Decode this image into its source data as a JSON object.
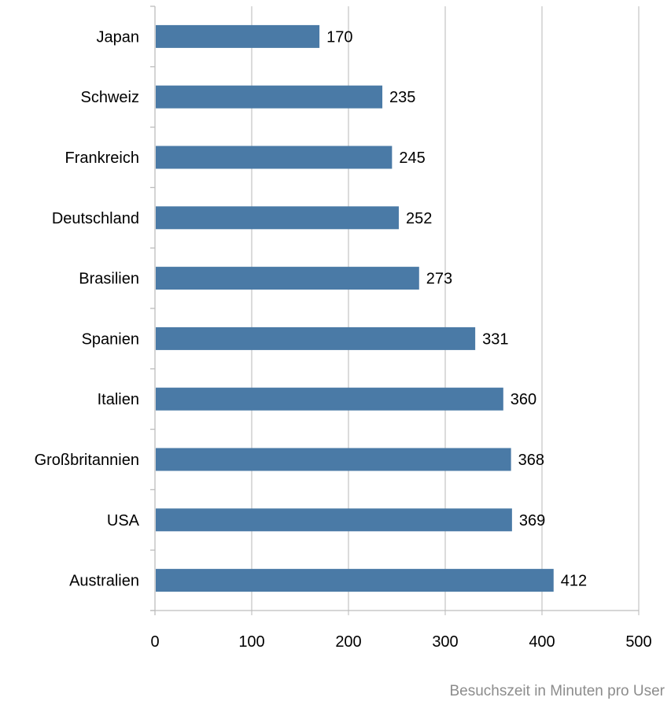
{
  "chart_data": {
    "type": "bar",
    "orientation": "horizontal",
    "categories": [
      "Japan",
      "Schweiz",
      "Frankreich",
      "Deutschland",
      "Brasilien",
      "Spanien",
      "Italien",
      "Großbritannien",
      "USA",
      "Australien"
    ],
    "values": [
      170,
      235,
      245,
      252,
      273,
      331,
      360,
      368,
      369,
      412
    ],
    "xlim": [
      0,
      500
    ],
    "xticks": [
      0,
      100,
      200,
      300,
      400,
      500
    ],
    "grid": true,
    "bar_color": "#4a7aa6",
    "data_labels": true,
    "caption": "Besuchszeit in Minuten pro User"
  }
}
